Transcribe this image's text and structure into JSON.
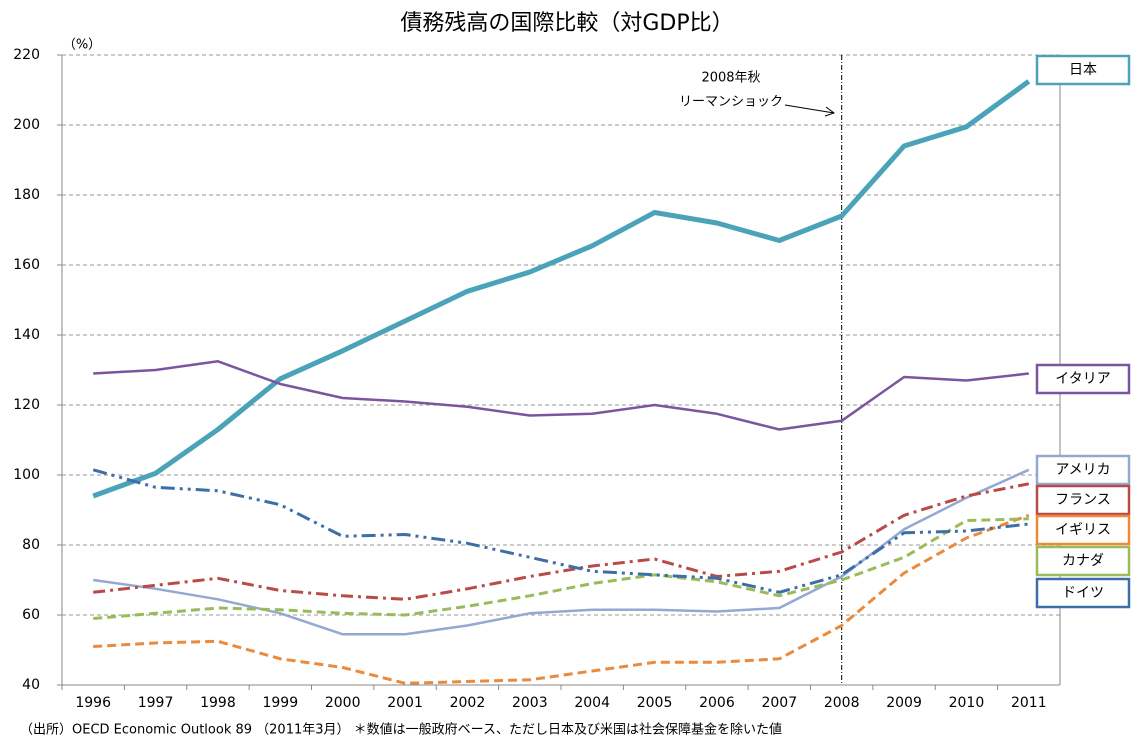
{
  "chart_data": {
    "type": "line",
    "title": "債務残高の国際比較（対GDP比）",
    "y_label": "（%）",
    "categories": [
      "1996",
      "1997",
      "1998",
      "1999",
      "2000",
      "2001",
      "2002",
      "2003",
      "2004",
      "2005",
      "2006",
      "2007",
      "2008",
      "2009",
      "2010",
      "2011"
    ],
    "ylim": [
      40,
      220
    ],
    "yticks": [
      40,
      60,
      80,
      100,
      120,
      140,
      160,
      180,
      200,
      220
    ],
    "grid": true,
    "annotation_lines": [
      "2008年秋",
      "リーマンショック"
    ],
    "note": "（出所）OECD Economic Outlook 89 （2011年3月） ＊数値は一般政府ベース、ただし日本及び米国は社会保障基金を除いた値",
    "series": [
      {
        "name": "日本",
        "color": "#4aa3b8",
        "dash": "solid",
        "width": 5,
        "values": [
          94,
          100.5,
          113,
          127.5,
          135.5,
          144,
          152.5,
          158,
          165.5,
          175,
          172,
          167,
          174,
          194,
          199.5,
          212.5
        ]
      },
      {
        "name": "イタリア",
        "color": "#7b559e",
        "dash": "solid",
        "width": 2.5,
        "values": [
          129,
          130,
          132.5,
          126,
          122,
          121,
          119.5,
          117,
          117.5,
          120,
          117.5,
          113,
          115.5,
          128,
          127,
          129
        ]
      },
      {
        "name": "アメリカ",
        "color": "#93a9d1",
        "dash": "solid",
        "width": 2.5,
        "values": [
          70,
          67.5,
          64.5,
          60.5,
          54.5,
          54.5,
          57,
          60.5,
          61.5,
          61.5,
          61,
          62,
          71,
          84.5,
          93.5,
          101.5
        ]
      },
      {
        "name": "フランス",
        "color": "#b94a48",
        "dash": "dash-dot",
        "width": 3,
        "values": [
          66.5,
          68.5,
          70.5,
          67,
          65.5,
          64.5,
          67.5,
          71,
          74,
          76,
          71,
          72.5,
          78,
          88.5,
          94,
          97.5
        ]
      },
      {
        "name": "イギリス",
        "color": "#ea8a3d",
        "dash": "dashed",
        "width": 3,
        "values": [
          51,
          52,
          52.5,
          47.5,
          45,
          40.5,
          41,
          41.5,
          44,
          46.5,
          46.5,
          47.5,
          57,
          72,
          82,
          88.5
        ]
      },
      {
        "name": "カナダ",
        "color": "#9bbb59",
        "dash": "dashed",
        "width": 3,
        "values": [
          59,
          60.5,
          62,
          61.5,
          60.5,
          60,
          62.5,
          65.5,
          69,
          71.5,
          69.5,
          65.5,
          70,
          76.5,
          87,
          87.5
        ]
      },
      {
        "name": "ドイツ",
        "color": "#3c6fa8",
        "dash": "dash-dot-dot",
        "width": 3,
        "values": [
          101.5,
          96.5,
          95.5,
          91.5,
          82.5,
          83,
          80.5,
          76.5,
          72.5,
          71.5,
          70.5,
          66.5,
          71.5,
          83.5,
          84,
          86
        ]
      }
    ]
  }
}
